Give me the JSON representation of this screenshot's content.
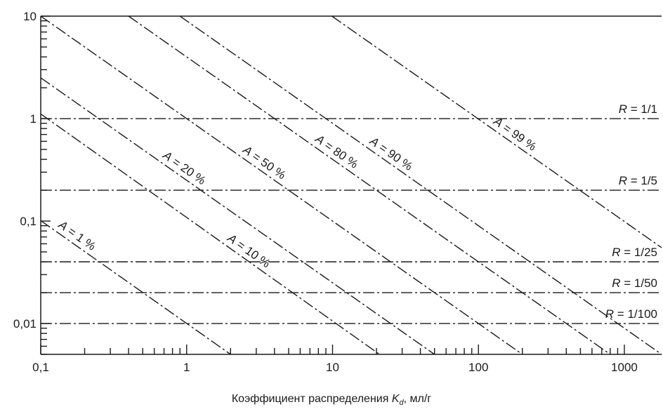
{
  "chart_data": {
    "type": "line",
    "x_scale": "log",
    "y_scale": "log",
    "xlim": [
      0.1,
      1800
    ],
    "ylim": [
      0.005,
      10
    ],
    "x_ticks": [
      {
        "value": 0.1,
        "label": "0,1"
      },
      {
        "value": 1,
        "label": "1"
      },
      {
        "value": 10,
        "label": "10"
      },
      {
        "value": 100,
        "label": "100"
      },
      {
        "value": 1000,
        "label": "1000"
      }
    ],
    "y_ticks": [
      {
        "value": 10,
        "label": "10"
      },
      {
        "value": 1,
        "label": "1"
      },
      {
        "value": 0.1,
        "label": "0,1"
      },
      {
        "value": 0.01,
        "label": "0,01"
      }
    ],
    "xlabel": {
      "prefix": "Коэффициент распределения ",
      "symbol": "K",
      "subscript": "d",
      "suffix": ", мл/г"
    },
    "ylabel": "",
    "horizontal_lines": [
      {
        "name": "R = 1/1",
        "label_italic": "R",
        "label_rest": " = 1/1",
        "y": 1
      },
      {
        "name": "R = 1/5",
        "label_italic": "R",
        "label_rest": " = 1/5",
        "y": 0.2
      },
      {
        "name": "R = 1/25",
        "label_italic": "R",
        "label_rest": " = 1/25",
        "y": 0.04
      },
      {
        "name": "R = 1/50",
        "label_italic": "R",
        "label_rest": " = 1/50",
        "y": 0.02
      },
      {
        "name": "R = 1/100",
        "label_italic": "R",
        "label_rest": " = 1/100",
        "y": 0.01
      }
    ],
    "series": [
      {
        "name": "A = 1 %",
        "label_italic": "A",
        "label_rest": " = 1 %",
        "x": [
          0.1,
          2.0
        ],
        "y": [
          0.101,
          0.005
        ],
        "label_at_x": 0.125
      },
      {
        "name": "A = 10 %",
        "label_italic": "A",
        "label_rest": " = 10 %",
        "x": [
          0.1,
          21
        ],
        "y": [
          1.11,
          0.005
        ],
        "label_at_x": 1.8
      },
      {
        "name": "A = 20 %",
        "label_italic": "A",
        "label_rest": " = 20 %",
        "x": [
          0.1,
          50
        ],
        "y": [
          2.5,
          0.005
        ],
        "label_at_x": 0.65
      },
      {
        "name": "A = 50 %",
        "label_italic": "A",
        "label_rest": " = 50 %",
        "x": [
          0.1,
          200
        ],
        "y": [
          10,
          0.005
        ],
        "label_at_x": 2.3
      },
      {
        "name": "A = 80 %",
        "label_italic": "A",
        "label_rest": " = 80 %",
        "x": [
          0.4,
          800
        ],
        "y": [
          10,
          0.005
        ],
        "label_at_x": 7.2
      },
      {
        "name": "A = 90 %",
        "label_italic": "A",
        "label_rest": " = 90 %",
        "x": [
          0.9,
          1800
        ],
        "y": [
          10,
          0.005
        ],
        "label_at_x": 17
      },
      {
        "name": "A = 99 %",
        "label_italic": "A",
        "label_rest": " = 99 %",
        "x": [
          9.9,
          1800
        ],
        "y": [
          10,
          0.055
        ],
        "label_at_x": 120
      }
    ],
    "grid": false,
    "legend": "none",
    "colors": {
      "line": "#1a1a1a",
      "frame": "#1a1a1a"
    }
  }
}
